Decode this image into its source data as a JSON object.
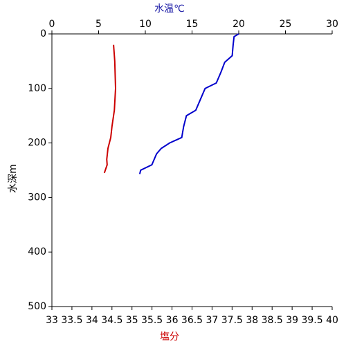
{
  "chart_data": {
    "type": "line",
    "x2_label": "水温℃",
    "x_label": "塩分",
    "y_label": "水深m",
    "xlim": [
      33,
      40
    ],
    "xticks": [
      33,
      33.5,
      34,
      34.5,
      35,
      35.5,
      36,
      36.5,
      37,
      37.5,
      38,
      38.5,
      39,
      39.5,
      40
    ],
    "x2lim": [
      0,
      30
    ],
    "x2ticks": [
      0,
      5,
      10,
      15,
      20,
      25,
      30
    ],
    "ylim": [
      0,
      500
    ],
    "yticks": [
      0,
      100,
      200,
      300,
      400,
      500
    ],
    "y_inverted": true,
    "x_label_color": "#cc0000",
    "x2_label_color": "#1a1aa6",
    "series": [
      {
        "color": "#cc0000",
        "axis": "x",
        "x": [
          34.54,
          34.57,
          34.59,
          34.56,
          34.5,
          34.47,
          34.4,
          34.37,
          34.38,
          34.31
        ],
        "y": [
          20,
          50,
          100,
          140,
          170,
          190,
          210,
          230,
          240,
          255
        ]
      },
      {
        "color": "#0000cc",
        "axis": "x2",
        "x": [
          20.0,
          19.5,
          19.4,
          19.3,
          18.5,
          18.1,
          17.6,
          16.4,
          15.9,
          15.4,
          14.4,
          14.1,
          13.9,
          12.6,
          11.7,
          11.2,
          10.7,
          9.5,
          9.4
        ],
        "y": [
          0,
          5,
          20,
          40,
          52,
          70,
          90,
          100,
          120,
          140,
          150,
          170,
          190,
          200,
          210,
          220,
          240,
          250,
          257
        ]
      }
    ]
  }
}
